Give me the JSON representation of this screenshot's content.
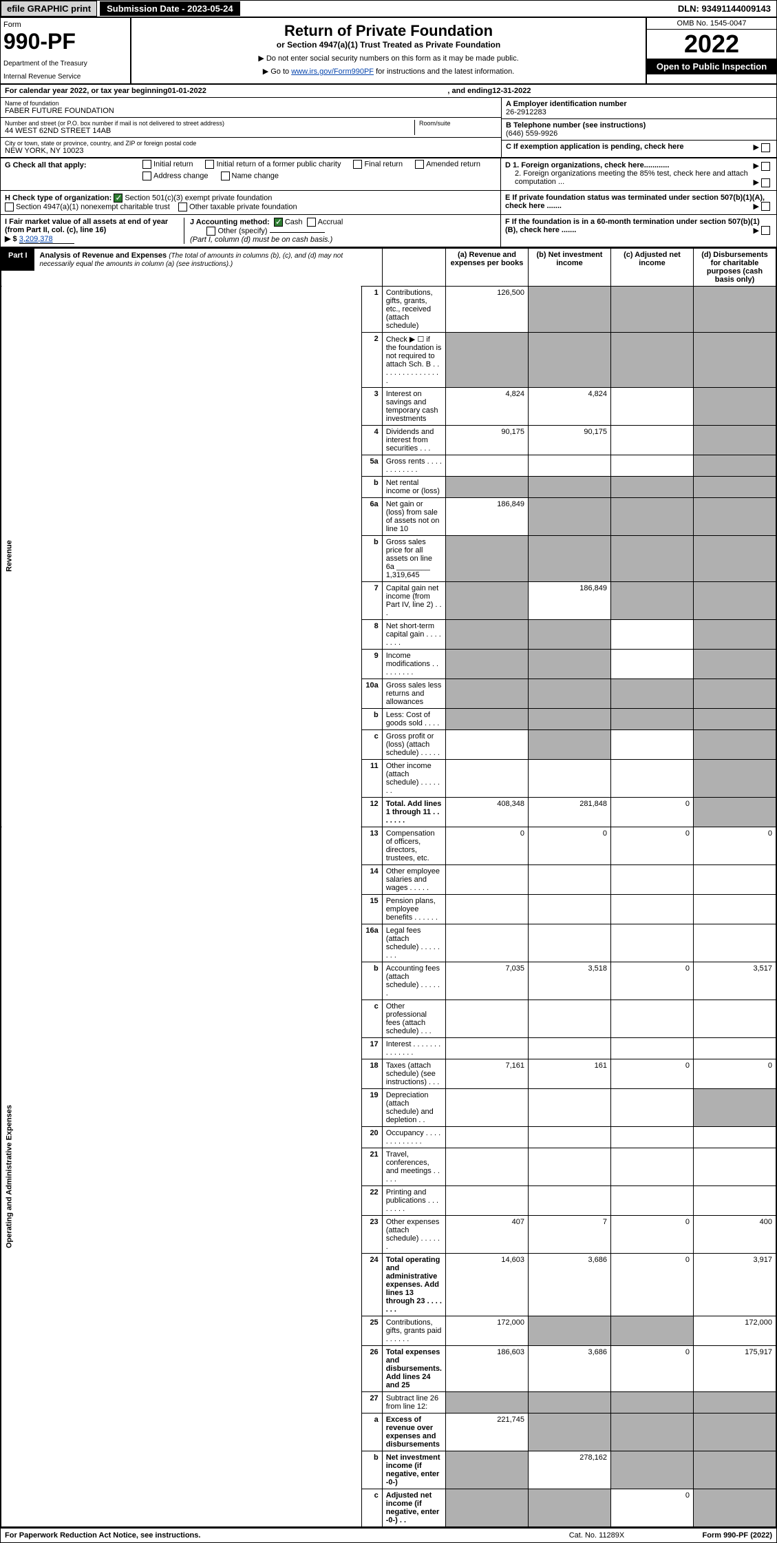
{
  "header": {
    "efile": "efile GRAPHIC print",
    "submission_label": "Submission Date - 2023-05-24",
    "dln": "DLN: 93491144009143",
    "form_label": "Form",
    "form_number": "990-PF",
    "dept": "Department of the Treasury",
    "irs": "Internal Revenue Service",
    "title": "Return of Private Foundation",
    "subtitle": "or Section 4947(a)(1) Trust Treated as Private Foundation",
    "note1": "▶ Do not enter social security numbers on this form as it may be made public.",
    "note2_pre": "▶ Go to ",
    "note2_link": "www.irs.gov/Form990PF",
    "note2_post": " for instructions and the latest information.",
    "omb": "OMB No. 1545-0047",
    "year": "2022",
    "open": "Open to Public Inspection"
  },
  "calendar": {
    "text_pre": "For calendar year 2022, or tax year beginning ",
    "begin": "01-01-2022",
    "mid": ", and ending ",
    "end": "12-31-2022"
  },
  "info": {
    "name_label": "Name of foundation",
    "name": "FABER FUTURE FOUNDATION",
    "addr_label": "Number and street (or P.O. box number if mail is not delivered to street address)",
    "addr": "44 WEST 62ND STREET 14AB",
    "room_label": "Room/suite",
    "city_label": "City or town, state or province, country, and ZIP or foreign postal code",
    "city": "NEW YORK, NY  10023",
    "a_label": "A Employer identification number",
    "a_val": "26-2912283",
    "b_label": "B Telephone number (see instructions)",
    "b_val": "(646) 559-9926",
    "c_label": "C If exemption application is pending, check here",
    "d1": "D 1. Foreign organizations, check here............",
    "d2": "2. Foreign organizations meeting the 85% test, check here and attach computation ...",
    "e": "E  If private foundation status was terminated under section 507(b)(1)(A), check here .......",
    "f": "F  If the foundation is in a 60-month termination under section 507(b)(1)(B), check here .......",
    "g_label": "G Check all that apply:",
    "g_opts": [
      "Initial return",
      "Initial return of a former public charity",
      "Final return",
      "Amended return",
      "Address change",
      "Name change"
    ],
    "h_label": "H Check type of organization:",
    "h_opt1": "Section 501(c)(3) exempt private foundation",
    "h_opt2": "Section 4947(a)(1) nonexempt charitable trust",
    "h_opt3": "Other taxable private foundation",
    "i_label": "I Fair market value of all assets at end of year (from Part II, col. (c), line 16)",
    "i_arrow": "▶ $",
    "i_val": "3,209,378",
    "j_label": "J Accounting method:",
    "j_cash": "Cash",
    "j_accrual": "Accrual",
    "j_other": "Other (specify)",
    "j_note": "(Part I, column (d) must be on cash basis.)"
  },
  "part1": {
    "label": "Part I",
    "title": "Analysis of Revenue and Expenses",
    "sub": "(The total of amounts in columns (b), (c), and (d) may not necessarily equal the amounts in column (a) (see instructions).)",
    "col_a": "(a)  Revenue and expenses per books",
    "col_b": "(b)  Net investment income",
    "col_c": "(c)  Adjusted net income",
    "col_d": "(d)  Disbursements for charitable purposes (cash basis only)",
    "vert_rev": "Revenue",
    "vert_exp": "Operating and Administrative Expenses"
  },
  "rows": [
    {
      "n": "1",
      "desc": "Contributions, gifts, grants, etc., received (attach schedule)",
      "a": "126,500",
      "b": "",
      "c": "",
      "d": "",
      "grey": [
        "b",
        "c",
        "d"
      ]
    },
    {
      "n": "2",
      "desc": "Check ▶ ☐ if the foundation is not required to attach Sch. B  . . . . . . . . . . . . . . . .",
      "a": "",
      "b": "",
      "c": "",
      "d": "",
      "grey": [
        "a",
        "b",
        "c",
        "d"
      ]
    },
    {
      "n": "3",
      "desc": "Interest on savings and temporary cash investments",
      "a": "4,824",
      "b": "4,824",
      "c": "",
      "d": "",
      "grey": [
        "d"
      ]
    },
    {
      "n": "4",
      "desc": "Dividends and interest from securities  . . .",
      "a": "90,175",
      "b": "90,175",
      "c": "",
      "d": "",
      "grey": [
        "d"
      ]
    },
    {
      "n": "5a",
      "desc": "Gross rents  . . . . . . . . . . . .",
      "a": "",
      "b": "",
      "c": "",
      "d": "",
      "grey": [
        "d"
      ]
    },
    {
      "n": "b",
      "desc": "Net rental income or (loss)",
      "a": "",
      "b": "",
      "c": "",
      "d": "",
      "grey": [
        "a",
        "b",
        "c",
        "d"
      ]
    },
    {
      "n": "6a",
      "desc": "Net gain or (loss) from sale of assets not on line 10",
      "a": "186,849",
      "b": "",
      "c": "",
      "d": "",
      "grey": [
        "b",
        "c",
        "d"
      ]
    },
    {
      "n": "b",
      "desc": "Gross sales price for all assets on line 6a ________ 1,319,645",
      "a": "",
      "b": "",
      "c": "",
      "d": "",
      "grey": [
        "a",
        "b",
        "c",
        "d"
      ]
    },
    {
      "n": "7",
      "desc": "Capital gain net income (from Part IV, line 2)  . . .",
      "a": "",
      "b": "186,849",
      "c": "",
      "d": "",
      "grey": [
        "a",
        "c",
        "d"
      ]
    },
    {
      "n": "8",
      "desc": "Net short-term capital gain  . . . . . . . .",
      "a": "",
      "b": "",
      "c": "",
      "d": "",
      "grey": [
        "a",
        "b",
        "d"
      ]
    },
    {
      "n": "9",
      "desc": "Income modifications  . . . . . . . . .",
      "a": "",
      "b": "",
      "c": "",
      "d": "",
      "grey": [
        "a",
        "b",
        "d"
      ]
    },
    {
      "n": "10a",
      "desc": "Gross sales less returns and allowances",
      "a": "",
      "b": "",
      "c": "",
      "d": "",
      "grey": [
        "a",
        "b",
        "c",
        "d"
      ]
    },
    {
      "n": "b",
      "desc": "Less: Cost of goods sold  . . . .",
      "a": "",
      "b": "",
      "c": "",
      "d": "",
      "grey": [
        "a",
        "b",
        "c",
        "d"
      ]
    },
    {
      "n": "c",
      "desc": "Gross profit or (loss) (attach schedule)  . . . . .",
      "a": "",
      "b": "",
      "c": "",
      "d": "",
      "grey": [
        "b",
        "d"
      ]
    },
    {
      "n": "11",
      "desc": "Other income (attach schedule)  . . . . . . .",
      "a": "",
      "b": "",
      "c": "",
      "d": "",
      "grey": [
        "d"
      ]
    },
    {
      "n": "12",
      "desc": "Total. Add lines 1 through 11  . . . . . . .",
      "a": "408,348",
      "b": "281,848",
      "c": "0",
      "d": "",
      "grey": [
        "d"
      ],
      "bold": true
    }
  ],
  "exp_rows": [
    {
      "n": "13",
      "desc": "Compensation of officers, directors, trustees, etc.",
      "a": "0",
      "b": "0",
      "c": "0",
      "d": "0"
    },
    {
      "n": "14",
      "desc": "Other employee salaries and wages  . . . . .",
      "a": "",
      "b": "",
      "c": "",
      "d": ""
    },
    {
      "n": "15",
      "desc": "Pension plans, employee benefits  . . . . . .",
      "a": "",
      "b": "",
      "c": "",
      "d": ""
    },
    {
      "n": "16a",
      "desc": "Legal fees (attach schedule)  . . . . . . . .",
      "a": "",
      "b": "",
      "c": "",
      "d": ""
    },
    {
      "n": "b",
      "desc": "Accounting fees (attach schedule)  . . . . . .",
      "a": "7,035",
      "b": "3,518",
      "c": "0",
      "d": "3,517"
    },
    {
      "n": "c",
      "desc": "Other professional fees (attach schedule)  . . .",
      "a": "",
      "b": "",
      "c": "",
      "d": ""
    },
    {
      "n": "17",
      "desc": "Interest  . . . . . . . . . . . . . .",
      "a": "",
      "b": "",
      "c": "",
      "d": ""
    },
    {
      "n": "18",
      "desc": "Taxes (attach schedule) (see instructions)  . . .",
      "a": "7,161",
      "b": "161",
      "c": "0",
      "d": "0"
    },
    {
      "n": "19",
      "desc": "Depreciation (attach schedule) and depletion  . .",
      "a": "",
      "b": "",
      "c": "",
      "d": "",
      "grey": [
        "d"
      ]
    },
    {
      "n": "20",
      "desc": "Occupancy  . . . . . . . . . . . . .",
      "a": "",
      "b": "",
      "c": "",
      "d": ""
    },
    {
      "n": "21",
      "desc": "Travel, conferences, and meetings  . . . . .",
      "a": "",
      "b": "",
      "c": "",
      "d": ""
    },
    {
      "n": "22",
      "desc": "Printing and publications  . . . . . . . .",
      "a": "",
      "b": "",
      "c": "",
      "d": ""
    },
    {
      "n": "23",
      "desc": "Other expenses (attach schedule)  . . . . . .",
      "a": "407",
      "b": "7",
      "c": "0",
      "d": "400"
    },
    {
      "n": "24",
      "desc": "Total operating and administrative expenses. Add lines 13 through 23  . . . . . . .",
      "a": "14,603",
      "b": "3,686",
      "c": "0",
      "d": "3,917",
      "bold": true
    },
    {
      "n": "25",
      "desc": "Contributions, gifts, grants paid  . . . . . .",
      "a": "172,000",
      "b": "",
      "c": "",
      "d": "172,000",
      "grey": [
        "b",
        "c"
      ]
    },
    {
      "n": "26",
      "desc": "Total expenses and disbursements. Add lines 24 and 25",
      "a": "186,603",
      "b": "3,686",
      "c": "0",
      "d": "175,917",
      "bold": true
    },
    {
      "n": "27",
      "desc": "Subtract line 26 from line 12:",
      "a": "",
      "b": "",
      "c": "",
      "d": "",
      "grey": [
        "a",
        "b",
        "c",
        "d"
      ]
    },
    {
      "n": "a",
      "desc": "Excess of revenue over expenses and disbursements",
      "a": "221,745",
      "b": "",
      "c": "",
      "d": "",
      "grey": [
        "b",
        "c",
        "d"
      ],
      "bold": true
    },
    {
      "n": "b",
      "desc": "Net investment income (if negative, enter -0-)",
      "a": "",
      "b": "278,162",
      "c": "",
      "d": "",
      "grey": [
        "a",
        "c",
        "d"
      ],
      "bold": true
    },
    {
      "n": "c",
      "desc": "Adjusted net income (if negative, enter -0-)  . .",
      "a": "",
      "b": "",
      "c": "0",
      "d": "",
      "grey": [
        "a",
        "b",
        "d"
      ],
      "bold": true
    }
  ],
  "footer": {
    "left": "For Paperwork Reduction Act Notice, see instructions.",
    "mid": "Cat. No. 11289X",
    "right": "Form 990-PF (2022)"
  }
}
